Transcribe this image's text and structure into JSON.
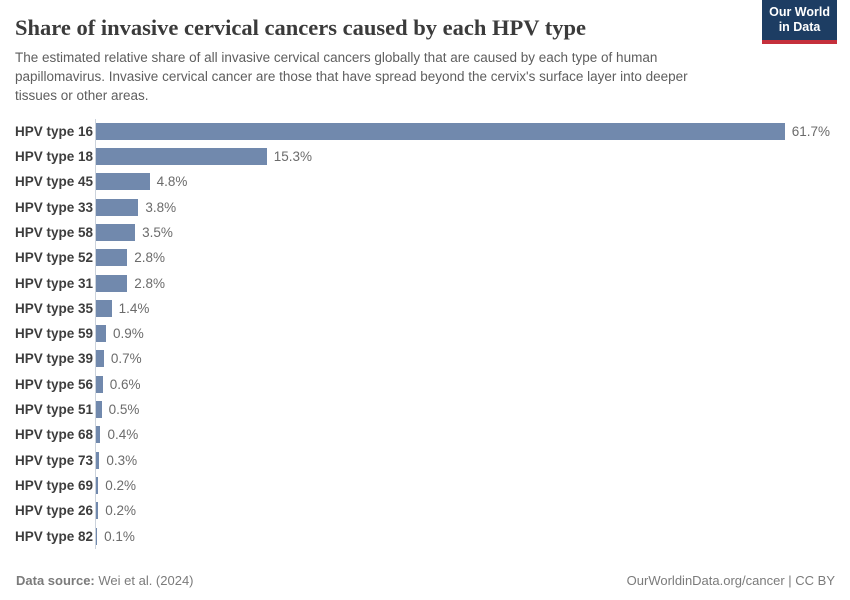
{
  "header": {
    "title": "Share of invasive cervical cancers caused by each HPV type",
    "subtitle": "The estimated relative share of all invasive cervical cancers globally that are caused by each type of human papillomavirus. Invasive cervical cancer are those that have spread beyond the cervix's surface layer into deeper tissues or other areas.",
    "logo": {
      "line1": "Our World",
      "line2": "in Data",
      "bg_color": "#1d3d63",
      "accent_color": "#c5303c"
    }
  },
  "chart_data": {
    "type": "bar",
    "orientation": "horizontal",
    "title": "Share of invasive cervical cancers caused by each HPV type",
    "xlabel": "",
    "ylabel": "",
    "categories": [
      "HPV type 16",
      "HPV type 18",
      "HPV type 45",
      "HPV type 33",
      "HPV type 58",
      "HPV type 52",
      "HPV type 31",
      "HPV type 35",
      "HPV type 59",
      "HPV type 39",
      "HPV type 56",
      "HPV type 51",
      "HPV type 68",
      "HPV type 73",
      "HPV type 69",
      "HPV type 26",
      "HPV type 82"
    ],
    "values": [
      61.7,
      15.3,
      4.8,
      3.8,
      3.5,
      2.8,
      2.8,
      1.4,
      0.9,
      0.7,
      0.6,
      0.5,
      0.4,
      0.3,
      0.2,
      0.2,
      0.1
    ],
    "value_labels": [
      "61.7%",
      "15.3%",
      "4.8%",
      "3.8%",
      "3.5%",
      "2.8%",
      "2.8%",
      "1.4%",
      "0.9%",
      "0.7%",
      "0.6%",
      "0.5%",
      "0.4%",
      "0.3%",
      "0.2%",
      "0.2%",
      "0.1%"
    ],
    "xlim": [
      0,
      66.2
    ],
    "bar_color": "#7189ad",
    "grid": false,
    "legend": false
  },
  "footer": {
    "datasource_label": "Data source:",
    "datasource_value": "Wei et al. (2024)",
    "license": "OurWorldinData.org/cancer | CC BY"
  }
}
